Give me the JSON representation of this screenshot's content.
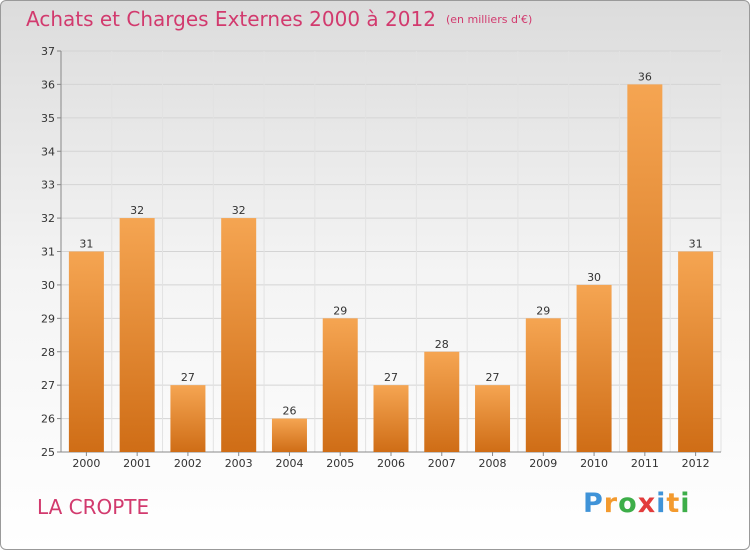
{
  "header": {
    "title": "Achats et Charges Externes 2000 à 2012",
    "subtitle": "(en milliers d'€)"
  },
  "footer": {
    "city": "LA CROPTE",
    "logo_text": "Proxiti",
    "logo_letters": [
      {
        "ch": "P",
        "color": "#3f93d8"
      },
      {
        "ch": "r",
        "color": "#f39a2e"
      },
      {
        "ch": "o",
        "color": "#3dae49"
      },
      {
        "ch": "x",
        "color": "#e23c3c"
      },
      {
        "ch": "i",
        "color": "#3f93d8"
      },
      {
        "ch": "t",
        "color": "#f39a2e"
      },
      {
        "ch": "i",
        "color": "#3dae49"
      }
    ]
  },
  "colors": {
    "accent": "#d23a6e",
    "bar_top": "#f5a552",
    "bar_bottom": "#cf6d16"
  },
  "chart_data": {
    "type": "bar",
    "title": "Achats et Charges Externes 2000 à 2012",
    "subtitle": "(en milliers d'€)",
    "categories": [
      "2000",
      "2001",
      "2002",
      "2003",
      "2004",
      "2005",
      "2006",
      "2007",
      "2008",
      "2009",
      "2010",
      "2011",
      "2012"
    ],
    "values": [
      31,
      32,
      27,
      32,
      26,
      29,
      27,
      28,
      27,
      29,
      30,
      36,
      31
    ],
    "ylim": [
      25,
      37
    ],
    "yticks": [
      25,
      26,
      27,
      28,
      29,
      30,
      31,
      32,
      33,
      34,
      35,
      36,
      37
    ],
    "grid": true,
    "xlabel": "",
    "ylabel": ""
  }
}
